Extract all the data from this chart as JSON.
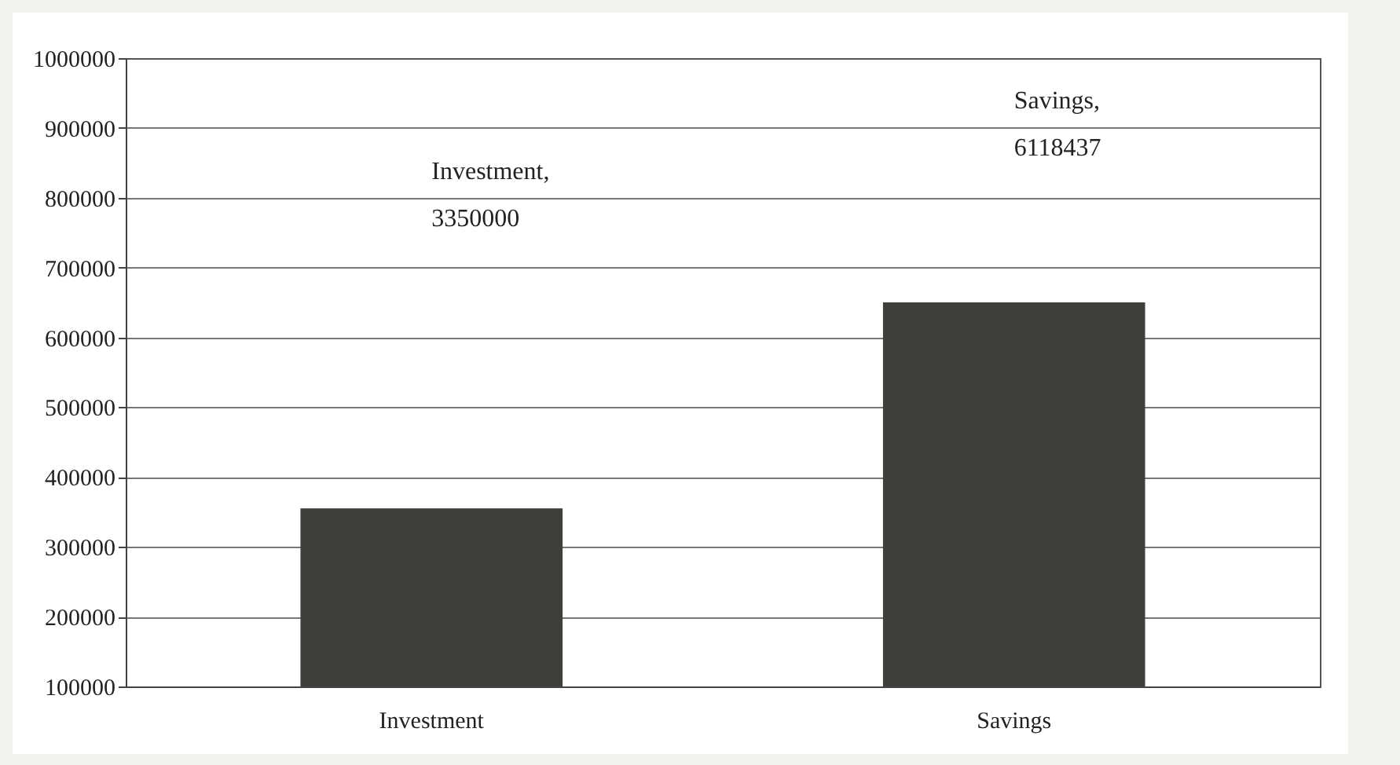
{
  "chart_data": {
    "type": "bar",
    "categories": [
      "Investment",
      "Savings"
    ],
    "values": [
      355000,
      650000
    ],
    "color": "#3d403b",
    "ylim": [
      100000,
      1000000
    ],
    "yticks": [
      100000,
      200000,
      300000,
      400000,
      500000,
      600000,
      700000,
      800000,
      900000,
      1000000
    ],
    "grid": "y",
    "annotations": [
      "Investment,\n3350000",
      "Savings,\n6118437"
    ]
  }
}
